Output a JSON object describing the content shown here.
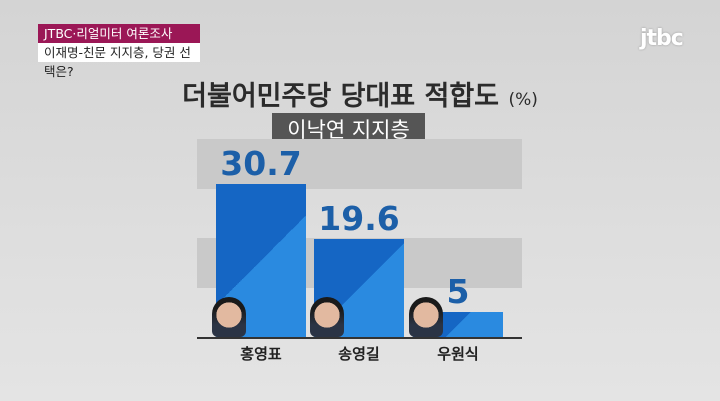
{
  "header": {
    "tag_primary": "JTBC·리얼미터 여론조사",
    "tag_secondary": "이재명-친문 지지층, 당권 선택은?",
    "logo": "jtbc"
  },
  "colors": {
    "bar": "#1566c4",
    "value_text": "#1c5fa8",
    "tag": "#9b1756"
  },
  "chart_data": {
    "type": "bar",
    "title": "더불어민주당 당대표 적합도",
    "unit": "(%)",
    "subtitle": "이낙연 지지층",
    "categories": [
      "홍영표",
      "송영길",
      "우원식"
    ],
    "values": [
      30.7,
      19.6,
      5
    ],
    "value_labels": [
      "30.7",
      "19.6",
      "5"
    ],
    "ylim": [
      0,
      32
    ]
  }
}
